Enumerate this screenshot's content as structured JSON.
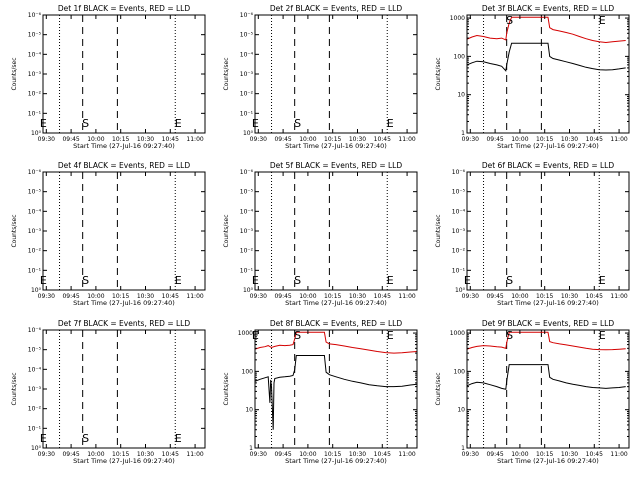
{
  "chart_data": [
    {
      "type": "line",
      "title": "Det 1f BLACK = Events, RED = LLD",
      "xlabel": "Start Time (27-Jul-16 09:27:40)",
      "ylabel": "Counts/sec",
      "ytick_labels": [
        "10⁻⁶",
        "10⁻⁵",
        "10⁻⁴",
        "10⁻³",
        "10⁻²",
        "10⁻¹",
        "10⁰"
      ],
      "xticks": [
        "09:30",
        "09:45",
        "10:00",
        "10:15",
        "10:30",
        "10:45",
        "11:00"
      ],
      "markers": [
        {
          "label": "E",
          "x": "09:30"
        },
        {
          "label": "S",
          "x": "09:52"
        },
        {
          "label": "E",
          "x": "10:48"
        }
      ],
      "series": []
    },
    {
      "type": "line",
      "title": "Det 2f BLACK = Events, RED = LLD",
      "xlabel": "Start Time (27-Jul-16 09:27:40)",
      "ylabel": "Counts/sec",
      "ytick_labels": [
        "10⁻⁶",
        "10⁻⁵",
        "10⁻⁴",
        "10⁻³",
        "10⁻²",
        "10⁻¹",
        "10⁰"
      ],
      "xticks": [
        "09:30",
        "09:45",
        "10:00",
        "10:15",
        "10:30",
        "10:45",
        "11:00"
      ],
      "markers": [
        {
          "label": "E",
          "x": "09:30"
        },
        {
          "label": "S",
          "x": "09:52"
        },
        {
          "label": "E",
          "x": "10:48"
        }
      ],
      "series": []
    },
    {
      "type": "line",
      "title": "Det 3f BLACK = Events, RED = LLD",
      "xlabel": "Start Time (27-Jul-16 09:27:40)",
      "ylabel": "Counts/sec",
      "ytick_labels": [
        "1",
        "10",
        "100",
        "1000"
      ],
      "xticks": [
        "09:30",
        "09:45",
        "10:00",
        "10:15",
        "10:30",
        "10:45",
        "11:00"
      ],
      "markers": [
        {
          "label": "S",
          "x": "09:52"
        },
        {
          "label": "E",
          "x": "10:48"
        }
      ],
      "series": [
        {
          "color": "#d40000",
          "points": [
            [
              "09:28",
              280
            ],
            [
              "09:31",
              320
            ],
            [
              "09:34",
              350
            ],
            [
              "09:38",
              330
            ],
            [
              "09:42",
              300
            ],
            [
              "09:46",
              290
            ],
            [
              "09:49",
              300
            ],
            [
              "09:51.5",
              270
            ],
            [
              "09:52",
              400
            ],
            [
              "09:53.5",
              750
            ],
            [
              "09:55",
              1050
            ],
            [
              "10:17",
              1050
            ],
            [
              "10:18",
              560
            ],
            [
              "10:20",
              500
            ],
            [
              "10:24",
              460
            ],
            [
              "10:28",
              420
            ],
            [
              "10:32",
              380
            ],
            [
              "10:36",
              330
            ],
            [
              "10:40",
              290
            ],
            [
              "10:44",
              260
            ],
            [
              "10:48",
              240
            ],
            [
              "10:52",
              230
            ],
            [
              "10:56",
              240
            ],
            [
              "11:00",
              250
            ],
            [
              "11:04",
              260
            ]
          ]
        },
        {
          "color": "#000000",
          "points": [
            [
              "09:28",
              60
            ],
            [
              "09:31",
              68
            ],
            [
              "09:34",
              75
            ],
            [
              "09:38",
              72
            ],
            [
              "09:42",
              65
            ],
            [
              "09:46",
              60
            ],
            [
              "09:49",
              55
            ],
            [
              "09:51.5",
              42
            ],
            [
              "09:52",
              60
            ],
            [
              "09:53.5",
              130
            ],
            [
              "09:55",
              220
            ],
            [
              "10:17",
              220
            ],
            [
              "10:18",
              100
            ],
            [
              "10:20",
              88
            ],
            [
              "10:24",
              80
            ],
            [
              "10:28",
              72
            ],
            [
              "10:32",
              65
            ],
            [
              "10:36",
              58
            ],
            [
              "10:40",
              52
            ],
            [
              "10:44",
              48
            ],
            [
              "10:48",
              45
            ],
            [
              "10:52",
              44
            ],
            [
              "10:56",
              45
            ],
            [
              "11:00",
              47
            ],
            [
              "11:04",
              50
            ]
          ]
        }
      ]
    },
    {
      "type": "line",
      "title": "Det 4f BLACK = Events, RED = LLD",
      "xlabel": "Start Time (27-Jul-16 09:27:40)",
      "ylabel": "Counts/sec",
      "ytick_labels": [
        "10⁻⁶",
        "10⁻⁵",
        "10⁻⁴",
        "10⁻³",
        "10⁻²",
        "10⁻¹",
        "10⁰"
      ],
      "xticks": [
        "09:30",
        "09:45",
        "10:00",
        "10:15",
        "10:30",
        "10:45",
        "11:00"
      ],
      "markers": [
        {
          "label": "E",
          "x": "09:30"
        },
        {
          "label": "S",
          "x": "09:52"
        },
        {
          "label": "E",
          "x": "10:48"
        }
      ],
      "series": []
    },
    {
      "type": "line",
      "title": "Det 5f BLACK = Events, RED = LLD",
      "xlabel": "Start Time (27-Jul-16 09:27:40)",
      "ylabel": "Counts/sec",
      "ytick_labels": [
        "10⁻⁶",
        "10⁻⁵",
        "10⁻⁴",
        "10⁻³",
        "10⁻²",
        "10⁻¹",
        "10⁰"
      ],
      "xticks": [
        "09:30",
        "09:45",
        "10:00",
        "10:15",
        "10:30",
        "10:45",
        "11:00"
      ],
      "markers": [
        {
          "label": "E",
          "x": "09:30"
        },
        {
          "label": "S",
          "x": "09:52"
        },
        {
          "label": "E",
          "x": "10:48"
        }
      ],
      "series": []
    },
    {
      "type": "line",
      "title": "Det 6f BLACK = Events, RED = LLD",
      "xlabel": "Start Time (27-Jul-16 09:27:40)",
      "ylabel": "Counts/sec",
      "ytick_labels": [
        "10⁻⁶",
        "10⁻⁵",
        "10⁻⁴",
        "10⁻³",
        "10⁻²",
        "10⁻¹",
        "10⁰"
      ],
      "xticks": [
        "09:30",
        "09:45",
        "10:00",
        "10:15",
        "10:30",
        "10:45",
        "11:00"
      ],
      "markers": [
        {
          "label": "E",
          "x": "09:30"
        },
        {
          "label": "S",
          "x": "09:52"
        },
        {
          "label": "E",
          "x": "10:48"
        }
      ],
      "series": []
    },
    {
      "type": "line",
      "title": "Det 7f BLACK = Events, RED = LLD",
      "xlabel": "Start Time (27-Jul-16 09:27:40)",
      "ylabel": "Counts/sec",
      "ytick_labels": [
        "10⁻⁶",
        "10⁻⁵",
        "10⁻⁴",
        "10⁻³",
        "10⁻²",
        "10⁻¹",
        "10⁰"
      ],
      "xticks": [
        "09:30",
        "09:45",
        "10:00",
        "10:15",
        "10:30",
        "10:45",
        "11:00"
      ],
      "markers": [
        {
          "label": "E",
          "x": "09:30"
        },
        {
          "label": "S",
          "x": "09:52"
        },
        {
          "label": "E",
          "x": "10:48"
        }
      ],
      "series": []
    },
    {
      "type": "line",
      "title": "Det 8f BLACK = Events, RED = LLD",
      "xlabel": "Start Time (27-Jul-16 09:27:40)",
      "ylabel": "Counts/sec",
      "ytick_labels": [
        "1",
        "10",
        "100",
        "1000"
      ],
      "xticks": [
        "09:30",
        "09:45",
        "10:00",
        "10:15",
        "10:30",
        "10:45",
        "11:00"
      ],
      "markers": [
        {
          "label": "E",
          "x": "09:30"
        },
        {
          "label": "S",
          "x": "09:52"
        },
        {
          "label": "E",
          "x": "10:48"
        }
      ],
      "series": [
        {
          "color": "#d40000",
          "points": [
            [
              "09:28",
              380
            ],
            [
              "09:31",
              420
            ],
            [
              "09:34",
              440
            ],
            [
              "09:36",
              470
            ],
            [
              "09:38",
              420
            ],
            [
              "09:40",
              450
            ],
            [
              "09:43",
              480
            ],
            [
              "09:46",
              470
            ],
            [
              "09:49",
              480
            ],
            [
              "09:51",
              500
            ],
            [
              "09:52",
              700
            ],
            [
              "09:53",
              1050
            ],
            [
              "10:10",
              1050
            ],
            [
              "10:11",
              580
            ],
            [
              "10:13",
              520
            ],
            [
              "10:17",
              500
            ],
            [
              "10:22",
              460
            ],
            [
              "10:27",
              420
            ],
            [
              "10:32",
              390
            ],
            [
              "10:37",
              360
            ],
            [
              "10:42",
              330
            ],
            [
              "10:47",
              310
            ],
            [
              "10:52",
              300
            ],
            [
              "10:57",
              305
            ],
            [
              "11:02",
              320
            ],
            [
              "11:06",
              330
            ]
          ]
        },
        {
          "color": "#000000",
          "points": [
            [
              "09:28",
              55
            ],
            [
              "09:31",
              62
            ],
            [
              "09:34",
              68
            ],
            [
              "09:36",
              72
            ],
            [
              "09:37",
              15
            ],
            [
              "09:37.5",
              60
            ],
            [
              "09:38",
              40
            ],
            [
              "09:39",
              3
            ],
            [
              "09:39.5",
              50
            ],
            [
              "09:40",
              65
            ],
            [
              "09:43",
              70
            ],
            [
              "09:46",
              72
            ],
            [
              "09:49",
              75
            ],
            [
              "09:51",
              78
            ],
            [
              "09:52",
              110
            ],
            [
              "09:53",
              260
            ],
            [
              "10:10",
              260
            ],
            [
              "10:11",
              95
            ],
            [
              "10:13",
              82
            ],
            [
              "10:17",
              72
            ],
            [
              "10:22",
              62
            ],
            [
              "10:27",
              55
            ],
            [
              "10:32",
              50
            ],
            [
              "10:37",
              45
            ],
            [
              "10:42",
              42
            ],
            [
              "10:47",
              40
            ],
            [
              "10:52",
              40
            ],
            [
              "10:57",
              41
            ],
            [
              "11:02",
              44
            ],
            [
              "11:06",
              46
            ]
          ]
        }
      ]
    },
    {
      "type": "line",
      "title": "Det 9f BLACK = Events, RED = LLD",
      "xlabel": "Start Time (27-Jul-16 09:27:40)",
      "ylabel": "Counts/sec",
      "ytick_labels": [
        "1",
        "10",
        "100",
        "1000"
      ],
      "xticks": [
        "09:30",
        "09:45",
        "10:00",
        "10:15",
        "10:30",
        "10:45",
        "11:00"
      ],
      "markers": [
        {
          "label": "S",
          "x": "09:52"
        },
        {
          "label": "E",
          "x": "10:48"
        }
      ],
      "series": [
        {
          "color": "#d40000",
          "points": [
            [
              "09:28",
              380
            ],
            [
              "09:31",
              420
            ],
            [
              "09:34",
              450
            ],
            [
              "09:38",
              470
            ],
            [
              "09:42",
              460
            ],
            [
              "09:46",
              440
            ],
            [
              "09:49",
              430
            ],
            [
              "09:51.5",
              400
            ],
            [
              "09:52",
              560
            ],
            [
              "09:53.5",
              1050
            ],
            [
              "10:17",
              1050
            ],
            [
              "10:18",
              600
            ],
            [
              "10:20",
              560
            ],
            [
              "10:24",
              520
            ],
            [
              "10:28",
              490
            ],
            [
              "10:32",
              460
            ],
            [
              "10:36",
              430
            ],
            [
              "10:40",
              400
            ],
            [
              "10:44",
              380
            ],
            [
              "10:48",
              370
            ],
            [
              "10:52",
              365
            ],
            [
              "10:56",
              370
            ],
            [
              "11:00",
              380
            ],
            [
              "11:04",
              390
            ]
          ]
        },
        {
          "color": "#000000",
          "points": [
            [
              "09:28",
              42
            ],
            [
              "09:31",
              48
            ],
            [
              "09:34",
              52
            ],
            [
              "09:38",
              50
            ],
            [
              "09:42",
              45
            ],
            [
              "09:46",
              40
            ],
            [
              "09:49",
              36
            ],
            [
              "09:51.5",
              34
            ],
            [
              "09:52",
              55
            ],
            [
              "09:53.5",
              150
            ],
            [
              "10:17",
              150
            ],
            [
              "10:18",
              70
            ],
            [
              "10:20",
              62
            ],
            [
              "10:24",
              56
            ],
            [
              "10:28",
              50
            ],
            [
              "10:32",
              46
            ],
            [
              "10:36",
              43
            ],
            [
              "10:40",
              40
            ],
            [
              "10:44",
              38
            ],
            [
              "10:48",
              37
            ],
            [
              "10:52",
              36
            ],
            [
              "10:56",
              37
            ],
            [
              "11:00",
              38
            ],
            [
              "11:04",
              40
            ]
          ]
        }
      ]
    }
  ]
}
